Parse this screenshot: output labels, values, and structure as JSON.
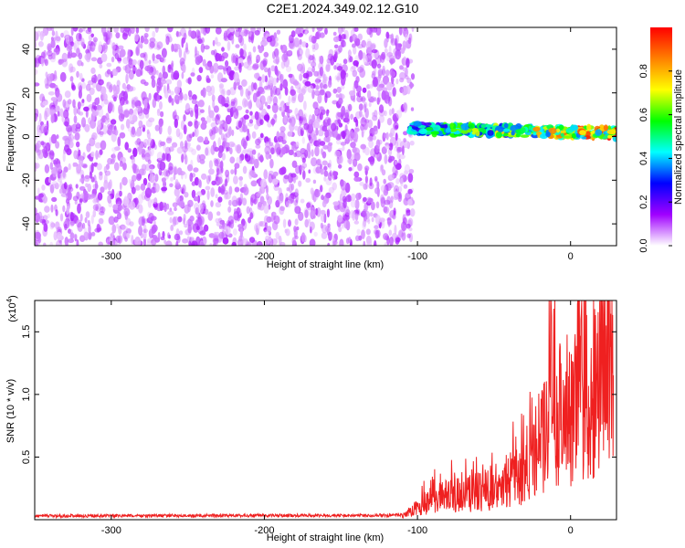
{
  "figure": {
    "title": "C2E1.2024.349.02.12.G10"
  },
  "chart_data": [
    {
      "type": "heatmap",
      "xlabel": "Height of straight line (km)",
      "ylabel": "Frequency (Hz)",
      "xlim": [
        -350,
        30
      ],
      "ylim": [
        -50,
        50
      ],
      "xticks": [
        -300,
        -200,
        -100,
        0
      ],
      "yticks": [
        -40,
        -20,
        0,
        20,
        40
      ],
      "colorbar": {
        "label": "Normalized spectral amplitude",
        "range": [
          0,
          1
        ],
        "ticks": [
          0.0,
          0.2,
          0.4,
          0.6,
          0.8
        ],
        "tick_labels": [
          "0.0",
          "0.2",
          "0.4",
          "0.6",
          "0.8"
        ],
        "colors": [
          "#ffffff",
          "#a000ff",
          "#0000ff",
          "#00ffff",
          "#00ff00",
          "#ffff00",
          "#ff8000",
          "#ff0000"
        ]
      },
      "features": {
        "noise_region_x": [
          -350,
          -103
        ],
        "noise_amplitude": 0.1,
        "signal_band_x": [
          -105,
          30
        ],
        "signal_frequency_hz": [
          3.5,
          1.5
        ],
        "signal_amplitude": [
          0.5,
          0.95
        ]
      },
      "grid": false
    },
    {
      "type": "line",
      "xlabel": "Height of straight line (km)",
      "ylabel": "SNR (10 * v/v)",
      "scale_label": "(x10",
      "scale_exponent": "4",
      "xlim": [
        -350,
        30
      ],
      "ylim": [
        0,
        17500
      ],
      "xticks": [
        -300,
        -200,
        -100,
        0
      ],
      "yticks": [
        5000,
        10000,
        15000
      ],
      "ytick_labels": [
        "0.5",
        "1.0",
        "1.5"
      ],
      "series": [
        {
          "color": "#ef2020",
          "x": [
            -350,
            -110,
            -100,
            -90,
            -80,
            -70,
            -60,
            -50,
            -40,
            -30,
            -25,
            -20,
            -15,
            -10,
            -5,
            0,
            5,
            10,
            15,
            20,
            25,
            28
          ],
          "y": [
            300,
            350,
            1200,
            2000,
            2300,
            2500,
            2700,
            3200,
            3800,
            4300,
            6000,
            7500,
            9000,
            10000,
            10800,
            11000,
            11500,
            12000,
            12800,
            14000,
            15500,
            16500
          ]
        }
      ],
      "grid": false
    }
  ]
}
